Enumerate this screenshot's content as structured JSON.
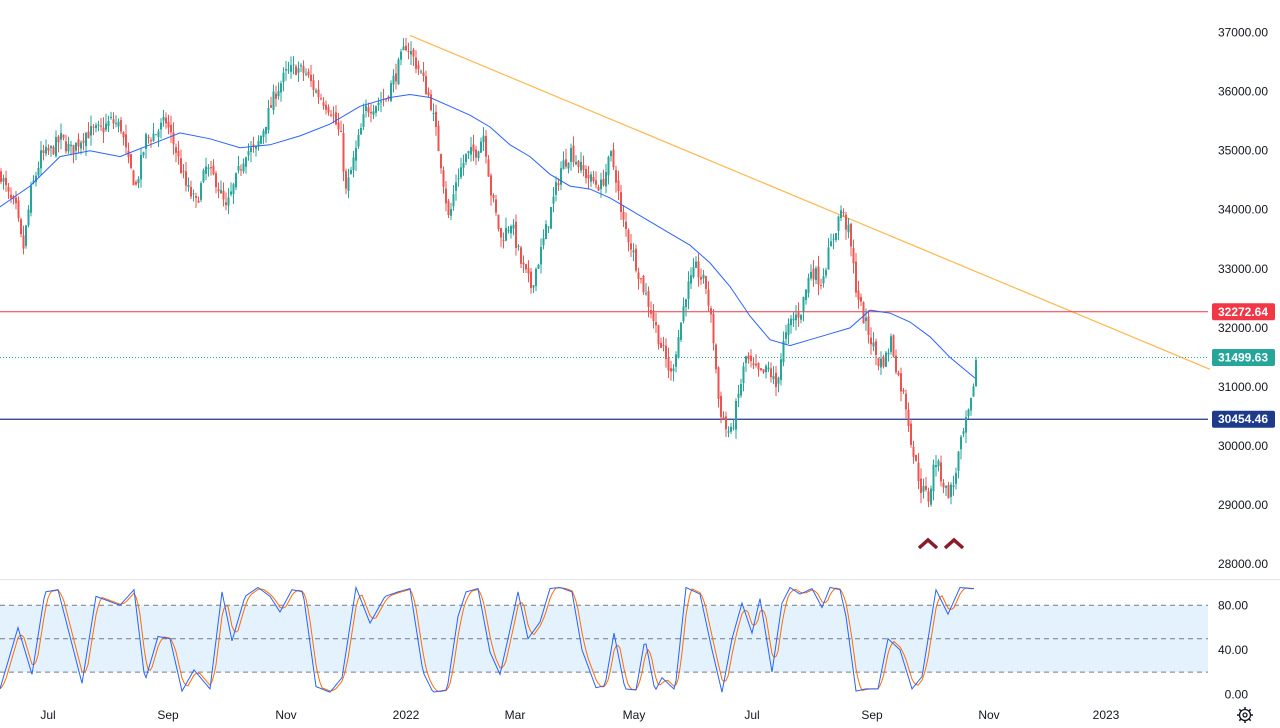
{
  "colors": {
    "up": "#26a69a",
    "down": "#ef5350",
    "ma": "#2962ff",
    "trendline": "#ffb74d",
    "resistance": "#f23645",
    "support": "#1e3a8a",
    "current": "#26a69a",
    "stoch_k": "#2962ff",
    "stoch_d": "#ff6d00",
    "stoch_band": "#e3f2fd",
    "marker": "#8b1a2b"
  },
  "icons": {
    "settings": "gear-icon",
    "pattern_marker": "caret-up-icon"
  },
  "chart_data": [
    {
      "type": "candlestick",
      "title": "",
      "x_ticks": [
        "Jul",
        "Sep",
        "Nov",
        "2022",
        "Mar",
        "May",
        "Jul",
        "Sep",
        "Nov",
        "2023"
      ],
      "y_ticks": [
        "37000.00",
        "36000.00",
        "35000.00",
        "34000.00",
        "33000.00",
        "32000.00",
        "31000.00",
        "30000.00",
        "29000.00",
        "28000.00"
      ],
      "ylim": [
        27750,
        37550
      ],
      "anchors": [
        [
          0,
          34600
        ],
        [
          8,
          34200
        ],
        [
          15,
          34000
        ],
        [
          22,
          33300
        ],
        [
          30,
          34300
        ],
        [
          40,
          34900
        ],
        [
          50,
          35000
        ],
        [
          60,
          35200
        ],
        [
          70,
          35000
        ],
        [
          85,
          35300
        ],
        [
          100,
          35350
        ],
        [
          110,
          35500
        ],
        [
          120,
          35400
        ],
        [
          127,
          34800
        ],
        [
          135,
          34400
        ],
        [
          145,
          35200
        ],
        [
          155,
          35300
        ],
        [
          165,
          35500
        ],
        [
          175,
          35000
        ],
        [
          185,
          34400
        ],
        [
          195,
          34100
        ],
        [
          205,
          34700
        ],
        [
          215,
          34500
        ],
        [
          225,
          34000
        ],
        [
          235,
          34500
        ],
        [
          245,
          35000
        ],
        [
          255,
          35000
        ],
        [
          265,
          35500
        ],
        [
          275,
          36000
        ],
        [
          285,
          36300
        ],
        [
          295,
          36400
        ],
        [
          305,
          36300
        ],
        [
          315,
          36000
        ],
        [
          330,
          35700
        ],
        [
          340,
          35200
        ],
        [
          345,
          34300
        ],
        [
          355,
          35000
        ],
        [
          365,
          35700
        ],
        [
          375,
          35800
        ],
        [
          385,
          35900
        ],
        [
          395,
          36300
        ],
        [
          405,
          36800
        ],
        [
          410,
          36650
        ],
        [
          420,
          36300
        ],
        [
          430,
          35800
        ],
        [
          440,
          34800
        ],
        [
          448,
          33800
        ],
        [
          455,
          34500
        ],
        [
          465,
          34900
        ],
        [
          475,
          35000
        ],
        [
          483,
          35300
        ],
        [
          490,
          34300
        ],
        [
          500,
          33500
        ],
        [
          510,
          33800
        ],
        [
          520,
          33100
        ],
        [
          530,
          32700
        ],
        [
          540,
          33300
        ],
        [
          550,
          34000
        ],
        [
          560,
          34700
        ],
        [
          570,
          35000
        ],
        [
          580,
          34700
        ],
        [
          590,
          34500
        ],
        [
          600,
          34400
        ],
        [
          610,
          34900
        ],
        [
          616,
          34500
        ],
        [
          620,
          33900
        ],
        [
          630,
          33400
        ],
        [
          640,
          32800
        ],
        [
          650,
          32300
        ],
        [
          660,
          31700
        ],
        [
          670,
          31200
        ],
        [
          678,
          31900
        ],
        [
          685,
          32600
        ],
        [
          695,
          33000
        ],
        [
          705,
          32700
        ],
        [
          712,
          31900
        ],
        [
          718,
          30700
        ],
        [
          725,
          30300
        ],
        [
          730,
          30200
        ],
        [
          738,
          30900
        ],
        [
          745,
          31500
        ],
        [
          752,
          31300
        ],
        [
          760,
          31200
        ],
        [
          768,
          31300
        ],
        [
          775,
          31000
        ],
        [
          782,
          31700
        ],
        [
          790,
          32100
        ],
        [
          800,
          32300
        ],
        [
          810,
          33000
        ],
        [
          820,
          32800
        ],
        [
          830,
          33400
        ],
        [
          840,
          34000
        ],
        [
          848,
          33600
        ],
        [
          855,
          32700
        ],
        [
          862,
          32200
        ],
        [
          870,
          31800
        ],
        [
          878,
          31400
        ],
        [
          885,
          31500
        ],
        [
          890,
          31800
        ],
        [
          897,
          31200
        ],
        [
          905,
          30700
        ],
        [
          912,
          29900
        ],
        [
          920,
          29300
        ],
        [
          928,
          29100
        ],
        [
          934,
          29800
        ],
        [
          940,
          29500
        ],
        [
          946,
          29200
        ],
        [
          952,
          29300
        ],
        [
          958,
          29900
        ],
        [
          964,
          30300
        ],
        [
          970,
          30700
        ],
        [
          975,
          31450
        ]
      ],
      "moving_average": [
        [
          0,
          34050
        ],
        [
          30,
          34400
        ],
        [
          60,
          34900
        ],
        [
          90,
          35000
        ],
        [
          120,
          34900
        ],
        [
          150,
          35100
        ],
        [
          180,
          35300
        ],
        [
          210,
          35200
        ],
        [
          240,
          35050
        ],
        [
          270,
          35100
        ],
        [
          300,
          35250
        ],
        [
          330,
          35450
        ],
        [
          360,
          35750
        ],
        [
          390,
          35900
        ],
        [
          410,
          35950
        ],
        [
          430,
          35900
        ],
        [
          450,
          35750
        ],
        [
          470,
          35600
        ],
        [
          490,
          35400
        ],
        [
          510,
          35100
        ],
        [
          530,
          34900
        ],
        [
          550,
          34600
        ],
        [
          570,
          34400
        ],
        [
          590,
          34350
        ],
        [
          610,
          34200
        ],
        [
          630,
          34000
        ],
        [
          650,
          33800
        ],
        [
          670,
          33600
        ],
        [
          690,
          33400
        ],
        [
          710,
          33100
        ],
        [
          730,
          32700
        ],
        [
          750,
          32200
        ],
        [
          770,
          31800
        ],
        [
          790,
          31700
        ],
        [
          810,
          31800
        ],
        [
          830,
          31900
        ],
        [
          850,
          32000
        ],
        [
          870,
          32300
        ],
        [
          890,
          32250
        ],
        [
          910,
          32100
        ],
        [
          930,
          31850
        ],
        [
          950,
          31500
        ],
        [
          975,
          31150
        ]
      ],
      "trendline": [
        [
          410,
          36950
        ],
        [
          1210,
          31300
        ]
      ],
      "resistance_level": {
        "value": 32272.64,
        "label": "32272.64"
      },
      "current_price": {
        "value": 31499.63,
        "label": "31499.63"
      },
      "support_level": {
        "value": 30454.46,
        "label": "30454.46"
      },
      "pattern_markers": [
        928,
        954
      ]
    },
    {
      "type": "line",
      "title": "",
      "y_ticks": [
        "80.00",
        "40.00",
        "0.00"
      ],
      "ylim": [
        -5,
        100
      ],
      "band": [
        20,
        80
      ],
      "midline": 50,
      "k_values": [
        [
          0,
          5
        ],
        [
          18,
          60
        ],
        [
          32,
          18
        ],
        [
          45,
          92
        ],
        [
          58,
          94
        ],
        [
          72,
          45
        ],
        [
          82,
          10
        ],
        [
          96,
          88
        ],
        [
          108,
          84
        ],
        [
          120,
          80
        ],
        [
          134,
          94
        ],
        [
          145,
          12
        ],
        [
          158,
          52
        ],
        [
          170,
          50
        ],
        [
          182,
          3
        ],
        [
          194,
          22
        ],
        [
          210,
          5
        ],
        [
          222,
          92
        ],
        [
          232,
          48
        ],
        [
          245,
          88
        ],
        [
          258,
          96
        ],
        [
          270,
          88
        ],
        [
          280,
          74
        ],
        [
          292,
          94
        ],
        [
          303,
          92
        ],
        [
          316,
          7
        ],
        [
          330,
          2
        ],
        [
          342,
          15
        ],
        [
          356,
          96
        ],
        [
          370,
          64
        ],
        [
          385,
          88
        ],
        [
          398,
          92
        ],
        [
          410,
          95
        ],
        [
          423,
          20
        ],
        [
          433,
          2
        ],
        [
          447,
          4
        ],
        [
          458,
          70
        ],
        [
          466,
          92
        ],
        [
          478,
          95
        ],
        [
          490,
          38
        ],
        [
          500,
          18
        ],
        [
          510,
          58
        ],
        [
          518,
          92
        ],
        [
          528,
          50
        ],
        [
          540,
          65
        ],
        [
          550,
          95
        ],
        [
          560,
          96
        ],
        [
          572,
          92
        ],
        [
          582,
          40
        ],
        [
          596,
          6
        ],
        [
          605,
          8
        ],
        [
          614,
          55
        ],
        [
          625,
          5
        ],
        [
          636,
          4
        ],
        [
          645,
          50
        ],
        [
          655,
          3
        ],
        [
          662,
          15
        ],
        [
          675,
          4
        ],
        [
          686,
          96
        ],
        [
          700,
          90
        ],
        [
          712,
          40
        ],
        [
          722,
          2
        ],
        [
          732,
          50
        ],
        [
          742,
          82
        ],
        [
          752,
          55
        ],
        [
          760,
          86
        ],
        [
          772,
          20
        ],
        [
          782,
          82
        ],
        [
          790,
          96
        ],
        [
          800,
          90
        ],
        [
          812,
          95
        ],
        [
          822,
          78
        ],
        [
          830,
          96
        ],
        [
          840,
          94
        ],
        [
          846,
          70
        ],
        [
          856,
          3
        ],
        [
          866,
          5
        ],
        [
          878,
          5
        ],
        [
          888,
          50
        ],
        [
          900,
          40
        ],
        [
          912,
          5
        ],
        [
          922,
          16
        ],
        [
          936,
          94
        ],
        [
          948,
          72
        ],
        [
          960,
          96
        ],
        [
          970,
          95
        ],
        [
          975,
          95
        ]
      ]
    }
  ]
}
